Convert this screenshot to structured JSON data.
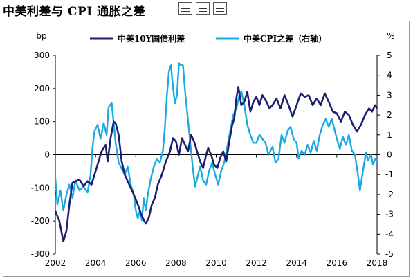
{
  "title": "中美利差与 CPI 通胀之差",
  "colors": {
    "spread": "#1b1f6e",
    "cpi": "#19a9e3",
    "axis": "#000000",
    "frame": "#9a9a9a"
  },
  "chart_data": {
    "type": "line",
    "left_axis": {
      "label": "bp",
      "ylim": [
        -300,
        300
      ],
      "ticks": [
        -300,
        -200,
        -100,
        0,
        100,
        200,
        300
      ]
    },
    "right_axis": {
      "label": "%",
      "ylim": [
        -5,
        5
      ],
      "ticks": [
        -5,
        -4,
        -3,
        -2,
        -1,
        0,
        1,
        2,
        3,
        4,
        5
      ]
    },
    "x_axis": {
      "xlim": [
        2002,
        2018
      ],
      "ticks": [
        "2002",
        "2004",
        "2006",
        "2008",
        "2010",
        "2012",
        "2014",
        "2016",
        "2018"
      ]
    },
    "grid": false,
    "legend_position": "top",
    "series": [
      {
        "name": "中美10Y国债利差",
        "axis": "left",
        "points": [
          [
            2002.0,
            -170
          ],
          [
            2002.2,
            -200
          ],
          [
            2002.4,
            -262
          ],
          [
            2002.55,
            -230
          ],
          [
            2002.7,
            -150
          ],
          [
            2002.85,
            -85
          ],
          [
            2003.0,
            -80
          ],
          [
            2003.2,
            -75
          ],
          [
            2003.4,
            -95
          ],
          [
            2003.6,
            -80
          ],
          [
            2003.8,
            -90
          ],
          [
            2003.9,
            -70
          ],
          [
            2004.1,
            -30
          ],
          [
            2004.3,
            10
          ],
          [
            2004.5,
            30
          ],
          [
            2004.6,
            -20
          ],
          [
            2004.75,
            50
          ],
          [
            2004.9,
            100
          ],
          [
            2005.0,
            95
          ],
          [
            2005.15,
            60
          ],
          [
            2005.3,
            -20
          ],
          [
            2005.45,
            -60
          ],
          [
            2005.6,
            -80
          ],
          [
            2005.75,
            -100
          ],
          [
            2005.9,
            -120
          ],
          [
            2006.1,
            -150
          ],
          [
            2006.3,
            -185
          ],
          [
            2006.5,
            -208
          ],
          [
            2006.65,
            -190
          ],
          [
            2006.8,
            -150
          ],
          [
            2006.95,
            -130
          ],
          [
            2007.1,
            -90
          ],
          [
            2007.3,
            -60
          ],
          [
            2007.5,
            -20
          ],
          [
            2007.7,
            10
          ],
          [
            2007.85,
            50
          ],
          [
            2008.0,
            40
          ],
          [
            2008.15,
            0
          ],
          [
            2008.3,
            50
          ],
          [
            2008.45,
            30
          ],
          [
            2008.6,
            10
          ],
          [
            2008.75,
            60
          ],
          [
            2008.9,
            40
          ],
          [
            2009.05,
            10
          ],
          [
            2009.2,
            -20
          ],
          [
            2009.35,
            -40
          ],
          [
            2009.5,
            0
          ],
          [
            2009.6,
            20
          ],
          [
            2009.75,
            0
          ],
          [
            2009.9,
            -30
          ],
          [
            2010.05,
            -40
          ],
          [
            2010.2,
            -10
          ],
          [
            2010.35,
            10
          ],
          [
            2010.5,
            -20
          ],
          [
            2010.65,
            40
          ],
          [
            2010.8,
            90
          ],
          [
            2010.9,
            110
          ],
          [
            2011.0,
            170
          ],
          [
            2011.1,
            205
          ],
          [
            2011.25,
            150
          ],
          [
            2011.4,
            160
          ],
          [
            2011.55,
            190
          ],
          [
            2011.7,
            130
          ],
          [
            2011.85,
            160
          ],
          [
            2012.0,
            175
          ],
          [
            2012.15,
            150
          ],
          [
            2012.3,
            180
          ],
          [
            2012.5,
            160
          ],
          [
            2012.65,
            140
          ],
          [
            2012.8,
            150
          ],
          [
            2013.0,
            170
          ],
          [
            2013.2,
            140
          ],
          [
            2013.4,
            180
          ],
          [
            2013.6,
            150
          ],
          [
            2013.8,
            115
          ],
          [
            2014.0,
            150
          ],
          [
            2014.2,
            185
          ],
          [
            2014.4,
            175
          ],
          [
            2014.6,
            180
          ],
          [
            2014.8,
            150
          ],
          [
            2015.0,
            170
          ],
          [
            2015.2,
            150
          ],
          [
            2015.4,
            185
          ],
          [
            2015.6,
            160
          ],
          [
            2015.8,
            130
          ],
          [
            2016.0,
            125
          ],
          [
            2016.2,
            100
          ],
          [
            2016.4,
            130
          ],
          [
            2016.6,
            120
          ],
          [
            2016.8,
            90
          ],
          [
            2017.0,
            70
          ],
          [
            2017.2,
            90
          ],
          [
            2017.4,
            120
          ],
          [
            2017.6,
            140
          ],
          [
            2017.75,
            130
          ],
          [
            2017.9,
            150
          ],
          [
            2018.0,
            140
          ]
        ]
      },
      {
        "name": "中美CPI之差（右轴）",
        "axis": "right",
        "points": [
          [
            2002.0,
            -1.2
          ],
          [
            2002.1,
            -2.5
          ],
          [
            2002.25,
            -1.8
          ],
          [
            2002.4,
            -2.8
          ],
          [
            2002.55,
            -2.0
          ],
          [
            2002.7,
            -1.5
          ],
          [
            2002.85,
            -2.2
          ],
          [
            2003.0,
            -1.3
          ],
          [
            2003.2,
            -1.8
          ],
          [
            2003.4,
            -1.6
          ],
          [
            2003.6,
            -1.9
          ],
          [
            2003.75,
            -1.0
          ],
          [
            2003.85,
            0.4
          ],
          [
            2003.95,
            1.2
          ],
          [
            2004.1,
            1.5
          ],
          [
            2004.25,
            0.8
          ],
          [
            2004.4,
            1.6
          ],
          [
            2004.55,
            1.0
          ],
          [
            2004.65,
            2.4
          ],
          [
            2004.8,
            2.6
          ],
          [
            2004.9,
            1.6
          ],
          [
            2005.0,
            0.6
          ],
          [
            2005.15,
            -0.4
          ],
          [
            2005.3,
            -0.7
          ],
          [
            2005.45,
            -1.0
          ],
          [
            2005.6,
            -0.6
          ],
          [
            2005.75,
            -1.5
          ],
          [
            2005.9,
            -2.0
          ],
          [
            2006.0,
            -2.8
          ],
          [
            2006.1,
            -3.2
          ],
          [
            2006.2,
            -2.8
          ],
          [
            2006.3,
            -3.3
          ],
          [
            2006.4,
            -2.2
          ],
          [
            2006.5,
            -2.8
          ],
          [
            2006.6,
            -2.0
          ],
          [
            2006.75,
            -1.2
          ],
          [
            2006.9,
            -0.6
          ],
          [
            2007.05,
            -0.2
          ],
          [
            2007.2,
            -0.4
          ],
          [
            2007.35,
            0.2
          ],
          [
            2007.45,
            1.4
          ],
          [
            2007.55,
            3.0
          ],
          [
            2007.65,
            4.2
          ],
          [
            2007.75,
            4.5
          ],
          [
            2007.85,
            3.4
          ],
          [
            2007.95,
            2.6
          ],
          [
            2008.05,
            3.0
          ],
          [
            2008.15,
            4.6
          ],
          [
            2008.25,
            4.5
          ],
          [
            2008.35,
            4.5
          ],
          [
            2008.45,
            3.2
          ],
          [
            2008.55,
            2.2
          ],
          [
            2008.65,
            1.2
          ],
          [
            2008.75,
            0.2
          ],
          [
            2008.85,
            -0.8
          ],
          [
            2008.95,
            -1.6
          ],
          [
            2009.05,
            -1.2
          ],
          [
            2009.2,
            -0.6
          ],
          [
            2009.35,
            -1.3
          ],
          [
            2009.5,
            -1.5
          ],
          [
            2009.65,
            -0.8
          ],
          [
            2009.8,
            -0.4
          ],
          [
            2009.95,
            -1.0
          ],
          [
            2010.1,
            -1.5
          ],
          [
            2010.25,
            -0.8
          ],
          [
            2010.4,
            -0.4
          ],
          [
            2010.55,
            0.4
          ],
          [
            2010.7,
            1.2
          ],
          [
            2010.85,
            2.0
          ],
          [
            2011.0,
            2.3
          ],
          [
            2011.15,
            3.0
          ],
          [
            2011.25,
            3.2
          ],
          [
            2011.4,
            2.5
          ],
          [
            2011.55,
            1.5
          ],
          [
            2011.7,
            1.0
          ],
          [
            2011.85,
            0.6
          ],
          [
            2012.0,
            0.6
          ],
          [
            2012.15,
            1.0
          ],
          [
            2012.3,
            0.8
          ],
          [
            2012.45,
            0.6
          ],
          [
            2012.6,
            0.0
          ],
          [
            2012.8,
            0.4
          ],
          [
            2012.95,
            -0.4
          ],
          [
            2013.1,
            -0.2
          ],
          [
            2013.25,
            1.0
          ],
          [
            2013.4,
            0.6
          ],
          [
            2013.55,
            1.2
          ],
          [
            2013.7,
            1.4
          ],
          [
            2013.85,
            0.8
          ],
          [
            2014.0,
            0.6
          ],
          [
            2014.1,
            -0.2
          ],
          [
            2014.25,
            0.2
          ],
          [
            2014.4,
            0.0
          ],
          [
            2014.55,
            0.5
          ],
          [
            2014.7,
            0.1
          ],
          [
            2014.85,
            0.7
          ],
          [
            2015.0,
            0.2
          ],
          [
            2015.15,
            1.0
          ],
          [
            2015.3,
            1.5
          ],
          [
            2015.45,
            1.8
          ],
          [
            2015.6,
            1.4
          ],
          [
            2015.75,
            1.8
          ],
          [
            2015.9,
            1.2
          ],
          [
            2016.0,
            0.8
          ],
          [
            2016.15,
            0.3
          ],
          [
            2016.3,
            0.9
          ],
          [
            2016.45,
            0.5
          ],
          [
            2016.6,
            1.0
          ],
          [
            2016.75,
            0.2
          ],
          [
            2016.9,
            0.0
          ],
          [
            2017.05,
            -1.0
          ],
          [
            2017.15,
            -1.8
          ],
          [
            2017.3,
            -0.8
          ],
          [
            2017.45,
            0.1
          ],
          [
            2017.55,
            -0.3
          ],
          [
            2017.7,
            0.0
          ],
          [
            2017.8,
            -0.5
          ],
          [
            2017.9,
            -0.2
          ],
          [
            2018.0,
            -0.3
          ]
        ]
      }
    ]
  }
}
